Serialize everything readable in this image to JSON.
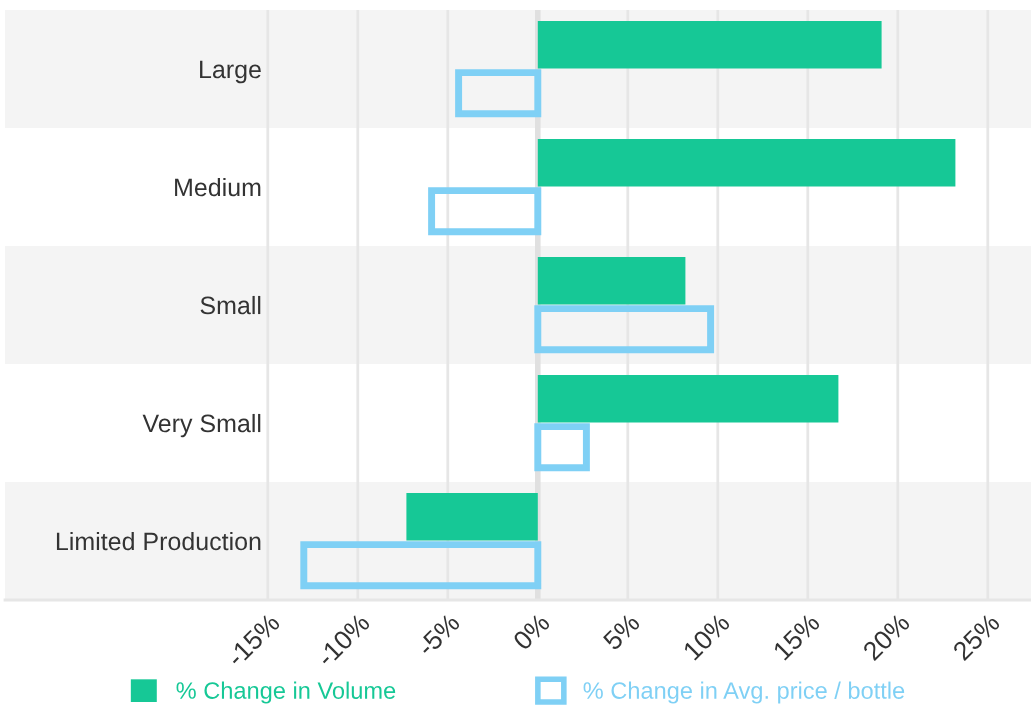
{
  "chart_data": {
    "type": "bar",
    "orientation": "horizontal",
    "categories": [
      "Large",
      "Medium",
      "Small",
      "Very Small",
      "Limited Production"
    ],
    "series": [
      {
        "name": "% Change in Volume",
        "color": "#16c896",
        "values": [
          19.1,
          23.2,
          8.2,
          16.7,
          -7.3
        ]
      },
      {
        "name": "% Change in Avg. price / bottle",
        "color": "#7fd0f5",
        "values": [
          -4.4,
          -5.9,
          9.6,
          2.7,
          -13.0
        ]
      }
    ],
    "xlim": [
      -29.6,
      27.4
    ],
    "xticks": [
      {
        "value": -15,
        "label": "-15%"
      },
      {
        "value": -10,
        "label": "-10%"
      },
      {
        "value": -5,
        "label": "-5%"
      },
      {
        "value": 0,
        "label": "0%"
      },
      {
        "value": 5,
        "label": "5%"
      },
      {
        "value": 10,
        "label": "10%"
      },
      {
        "value": 15,
        "label": "15%"
      },
      {
        "value": 20,
        "label": "20%"
      },
      {
        "value": 25,
        "label": "25%"
      }
    ],
    "grid": "x",
    "legend": "bottom"
  }
}
